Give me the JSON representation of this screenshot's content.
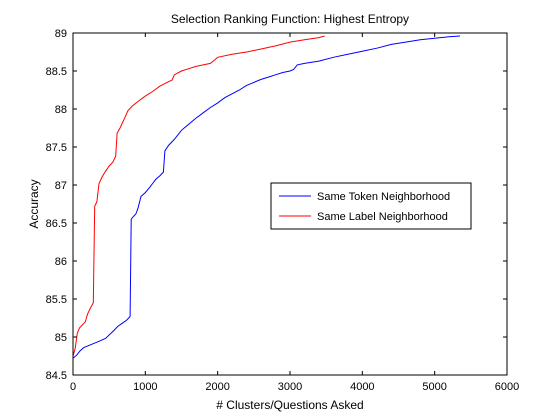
{
  "chart_data": {
    "type": "line",
    "title": "Selection Ranking Function: Highest Entropy",
    "xlabel": "# Clusters/Questions Asked",
    "ylabel": "Accuracy",
    "xlim": [
      0,
      6000
    ],
    "ylim": [
      84.5,
      89
    ],
    "xticks": [
      0,
      1000,
      2000,
      3000,
      4000,
      5000,
      6000
    ],
    "xtick_labels": [
      "0",
      "1000",
      "2000",
      "3000",
      "4000",
      "5000",
      "6000"
    ],
    "yticks": [
      84.5,
      85,
      85.5,
      86,
      86.5,
      87,
      87.5,
      88,
      88.5,
      89
    ],
    "ytick_labels": [
      "84.5",
      "85",
      "85.5",
      "86",
      "86.5",
      "87",
      "87.5",
      "88",
      "88.5",
      "89"
    ],
    "grid": false,
    "legend_position": "right-middle",
    "series": [
      {
        "name": "Same Token Neighborhood",
        "color": "#0000ff",
        "points": [
          [
            0,
            84.72
          ],
          [
            50,
            84.76
          ],
          [
            100,
            84.82
          ],
          [
            150,
            84.86
          ],
          [
            250,
            84.9
          ],
          [
            350,
            84.94
          ],
          [
            450,
            84.98
          ],
          [
            560,
            85.08
          ],
          [
            620,
            85.14
          ],
          [
            680,
            85.18
          ],
          [
            740,
            85.22
          ],
          [
            790,
            85.27
          ],
          [
            805,
            86.55
          ],
          [
            830,
            86.58
          ],
          [
            870,
            86.62
          ],
          [
            900,
            86.7
          ],
          [
            940,
            86.85
          ],
          [
            1000,
            86.9
          ],
          [
            1060,
            86.97
          ],
          [
            1100,
            87.02
          ],
          [
            1150,
            87.08
          ],
          [
            1200,
            87.12
          ],
          [
            1250,
            87.17
          ],
          [
            1270,
            87.45
          ],
          [
            1320,
            87.52
          ],
          [
            1400,
            87.6
          ],
          [
            1500,
            87.72
          ],
          [
            1600,
            87.8
          ],
          [
            1700,
            87.88
          ],
          [
            1800,
            87.95
          ],
          [
            1900,
            88.02
          ],
          [
            2000,
            88.08
          ],
          [
            2100,
            88.15
          ],
          [
            2200,
            88.2
          ],
          [
            2300,
            88.25
          ],
          [
            2400,
            88.31
          ],
          [
            2500,
            88.35
          ],
          [
            2600,
            88.39
          ],
          [
            2700,
            88.42
          ],
          [
            2800,
            88.45
          ],
          [
            2900,
            88.48
          ],
          [
            3000,
            88.5
          ],
          [
            3050,
            88.52
          ],
          [
            3100,
            88.58
          ],
          [
            3200,
            88.6
          ],
          [
            3400,
            88.63
          ],
          [
            3600,
            88.68
          ],
          [
            3800,
            88.72
          ],
          [
            4000,
            88.76
          ],
          [
            4200,
            88.8
          ],
          [
            4400,
            88.85
          ],
          [
            4600,
            88.88
          ],
          [
            4800,
            88.91
          ],
          [
            5000,
            88.93
          ],
          [
            5200,
            88.95
          ],
          [
            5350,
            88.96
          ]
        ]
      },
      {
        "name": "Same Label Neighborhood",
        "color": "#ff0000",
        "points": [
          [
            0,
            84.75
          ],
          [
            30,
            84.85
          ],
          [
            60,
            85.05
          ],
          [
            90,
            85.12
          ],
          [
            120,
            85.15
          ],
          [
            170,
            85.2
          ],
          [
            200,
            85.3
          ],
          [
            240,
            85.38
          ],
          [
            280,
            85.45
          ],
          [
            300,
            86.72
          ],
          [
            330,
            86.78
          ],
          [
            360,
            87.02
          ],
          [
            400,
            87.1
          ],
          [
            450,
            87.18
          ],
          [
            500,
            87.25
          ],
          [
            550,
            87.3
          ],
          [
            590,
            87.38
          ],
          [
            610,
            87.68
          ],
          [
            650,
            87.75
          ],
          [
            700,
            87.85
          ],
          [
            760,
            87.98
          ],
          [
            820,
            88.04
          ],
          [
            900,
            88.1
          ],
          [
            1000,
            88.17
          ],
          [
            1100,
            88.23
          ],
          [
            1200,
            88.3
          ],
          [
            1300,
            88.35
          ],
          [
            1370,
            88.38
          ],
          [
            1400,
            88.45
          ],
          [
            1500,
            88.5
          ],
          [
            1600,
            88.53
          ],
          [
            1700,
            88.56
          ],
          [
            1800,
            88.58
          ],
          [
            1900,
            88.6
          ],
          [
            1950,
            88.64
          ],
          [
            2000,
            88.68
          ],
          [
            2200,
            88.72
          ],
          [
            2400,
            88.75
          ],
          [
            2600,
            88.79
          ],
          [
            2800,
            88.83
          ],
          [
            3000,
            88.88
          ],
          [
            3200,
            88.91
          ],
          [
            3400,
            88.94
          ],
          [
            3480,
            88.96
          ]
        ]
      }
    ]
  }
}
